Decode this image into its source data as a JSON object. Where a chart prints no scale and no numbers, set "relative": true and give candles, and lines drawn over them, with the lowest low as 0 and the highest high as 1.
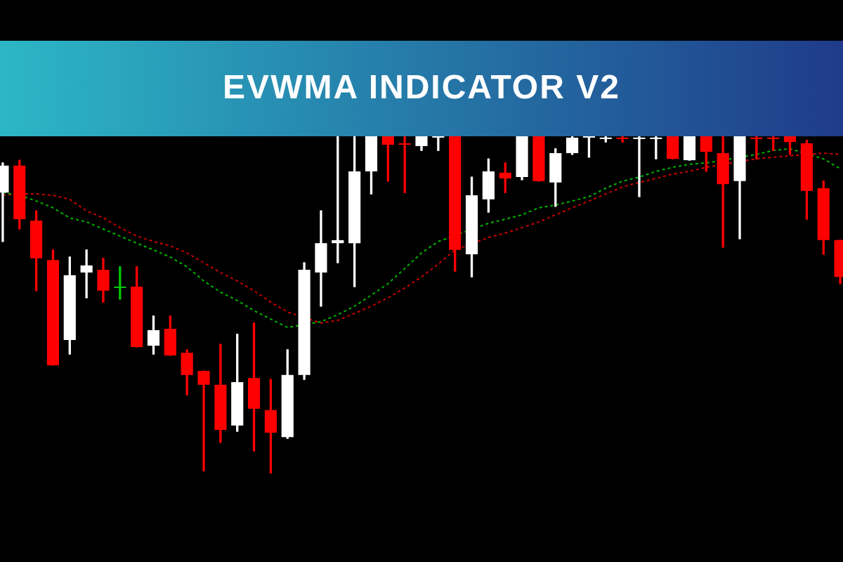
{
  "chart_data": {
    "type": "candlestick",
    "title": "EVWMA INDICATOR V2",
    "relative": true,
    "legend": false,
    "marker": "none",
    "line_style": "dotted",
    "categories": [
      null,
      null,
      null,
      null,
      null,
      null,
      null,
      null,
      null,
      null,
      null,
      null,
      null,
      null,
      null,
      null,
      null,
      null,
      null,
      null,
      null,
      null,
      null,
      null,
      null,
      null,
      null,
      null,
      null,
      null,
      null,
      null,
      null,
      null,
      null,
      null,
      null,
      null,
      null,
      null,
      null,
      null,
      null,
      null,
      null,
      null,
      null,
      null,
      null,
      null,
      null
    ],
    "ohlc": [
      [
        0.833,
        0.921,
        0.688,
        0.913
      ],
      [
        0.913,
        0.929,
        0.725,
        0.754
      ],
      [
        0.75,
        0.779,
        0.542,
        0.638
      ],
      [
        0.633,
        0.663,
        0.321,
        0.321
      ],
      [
        0.396,
        0.642,
        0.354,
        0.588
      ],
      [
        0.596,
        0.663,
        0.521,
        0.617
      ],
      [
        0.604,
        0.638,
        0.508,
        0.542
      ],
      [
        0.55,
        0.613,
        0.517,
        0.55
      ],
      [
        0.554,
        0.613,
        0.375,
        0.375
      ],
      [
        0.379,
        0.467,
        0.354,
        0.425
      ],
      [
        0.429,
        0.467,
        0.35,
        0.35
      ],
      [
        0.358,
        0.367,
        0.233,
        0.292
      ],
      [
        0.304,
        0.304,
        0.008,
        0.263
      ],
      [
        0.263,
        0.383,
        0.092,
        0.129
      ],
      [
        0.142,
        0.413,
        0.125,
        0.271
      ],
      [
        0.283,
        0.446,
        0.067,
        0.192
      ],
      [
        0.188,
        0.279,
        0,
        0.121
      ],
      [
        0.108,
        0.367,
        0.104,
        0.292
      ],
      [
        0.292,
        0.625,
        0.279,
        0.604
      ],
      [
        0.596,
        0.779,
        0.496,
        0.683
      ],
      [
        0.683,
        1,
        0.625,
        0.692
      ],
      [
        0.683,
        1,
        0.554,
        0.896
      ],
      [
        0.896,
        1,
        0.829,
        1
      ],
      [
        1,
        1,
        0.867,
        0.975
      ],
      [
        0.979,
        1,
        0.833,
        0.975
      ],
      [
        0.971,
        1,
        0.958,
        1
      ],
      [
        0.996,
        1,
        0.958,
        1
      ],
      [
        1,
        1,
        0.6,
        0.663
      ],
      [
        0.65,
        0.879,
        0.583,
        0.825
      ],
      [
        0.813,
        0.933,
        0.775,
        0.896
      ],
      [
        0.892,
        0.921,
        0.833,
        0.875
      ],
      [
        0.879,
        1,
        0.871,
        1
      ],
      [
        1,
        1,
        0.867,
        0.867
      ],
      [
        0.863,
        0.963,
        0.792,
        0.95
      ],
      [
        0.95,
        1,
        0.946,
        0.996
      ],
      [
        0.996,
        1,
        0.938,
        1
      ],
      [
        0.992,
        1,
        0.983,
        0.996
      ],
      [
        0.996,
        1,
        0.983,
        0.992
      ],
      [
        0.992,
        1,
        0.821,
        0.996
      ],
      [
        0.992,
        1,
        0.933,
        0.996
      ],
      [
        1,
        1,
        0.933,
        0.933
      ],
      [
        0.929,
        1,
        0.929,
        1
      ],
      [
        1,
        1,
        0.896,
        0.954
      ],
      [
        0.95,
        1,
        0.671,
        0.858
      ],
      [
        0.867,
        1,
        0.696,
        1
      ],
      [
        0.996,
        1,
        0.933,
        0.992
      ],
      [
        0.996,
        1,
        0.958,
        0.992
      ],
      [
        1,
        1,
        0.946,
        0.983
      ],
      [
        0.979,
        0.988,
        0.754,
        0.838
      ],
      [
        0.846,
        0.867,
        0.65,
        0.692
      ],
      [
        0.692,
        0.692,
        0.563,
        0.583
      ]
    ],
    "colors": [
      "#ffffff",
      "#ff0000",
      "#ff0000",
      "#ff0000",
      "#ffffff",
      "#ffffff",
      "#ff0000",
      "#00c800",
      "#ff0000",
      "#ffffff",
      "#ff0000",
      "#ff0000",
      "#ff0000",
      "#ff0000",
      "#ffffff",
      "#ff0000",
      "#ff0000",
      "#ffffff",
      "#ffffff",
      "#ffffff",
      "#ffffff",
      "#ffffff",
      "#ffffff",
      "#ff0000",
      "#ff0000",
      "#ffffff",
      "#ffffff",
      "#ff0000",
      "#ffffff",
      "#ffffff",
      "#ff0000",
      "#ffffff",
      "#ff0000",
      "#ffffff",
      "#ffffff",
      "#ffffff",
      "#ffffff",
      "#ff0000",
      "#ffffff",
      "#ffffff",
      "#ff0000",
      "#ffffff",
      "#ff0000",
      "#ff0000",
      "#ffffff",
      "#ff0000",
      "#ff0000",
      "#ff0000",
      "#ff0000",
      "#ff0000",
      "#ff0000"
    ],
    "series": [
      {
        "type": "line",
        "color": "#00b400",
        "values": [
          0.833,
          0.825,
          0.808,
          0.788,
          0.758,
          0.746,
          0.725,
          0.704,
          0.683,
          0.663,
          0.642,
          0.613,
          0.571,
          0.538,
          0.513,
          0.483,
          0.458,
          0.433,
          null,
          0.45,
          0.471,
          0.496,
          0.529,
          0.563,
          0.608,
          0.654,
          0.688,
          null,
          null,
          0.742,
          0.754,
          0.767,
          0.788,
          0.796,
          0.808,
          0.821,
          0.846,
          0.867,
          0.879,
          0.896,
          0.908,
          0.917,
          0.921,
          null,
          null,
          0.946,
          0.958,
          0.963,
          null,
          0.933,
          0.904
        ]
      },
      {
        "type": "line",
        "color": "#c80000",
        "values": [
          0.825,
          0.829,
          0.829,
          0.825,
          0.813,
          0.779,
          0.758,
          0.729,
          0.704,
          0.688,
          0.675,
          0.654,
          0.625,
          0.596,
          0.571,
          0.542,
          0.508,
          0.479,
          null,
          0.446,
          0.454,
          0.475,
          0.496,
          0.521,
          0.55,
          0.583,
          0.621,
          0.663,
          null,
          0.7,
          0.713,
          0.729,
          0.746,
          0.767,
          0.788,
          0.808,
          0.829,
          0.85,
          0.863,
          0.875,
          0.888,
          0.896,
          0.908,
          0.917,
          null,
          0.933,
          0.938,
          0.942,
          0.946,
          0.95,
          0.946
        ]
      }
    ]
  }
}
